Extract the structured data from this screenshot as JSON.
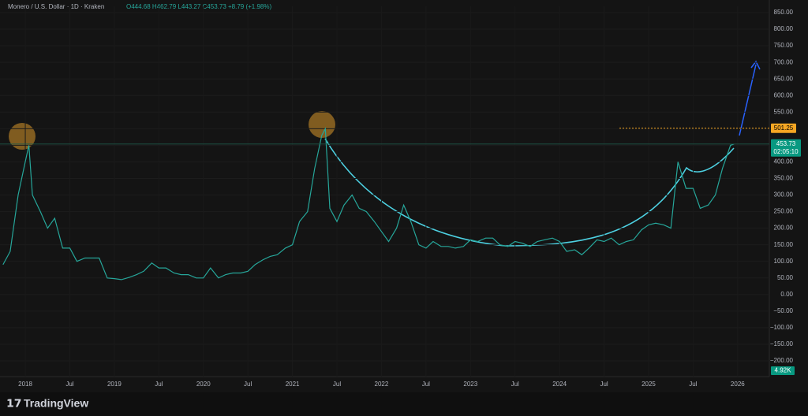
{
  "chart_data": {
    "type": "line",
    "header": "Monero / U.S. Dollar · 1D · Kraken",
    "ohlc_text": "O444.68 H462.79 L443.27 C453.73 +8.79 (+1.98%)",
    "brand": "TradingView",
    "color": "#26a69a",
    "x": [
      2017.75,
      2017.83,
      2017.92,
      2018.0,
      2018.04,
      2018.08,
      2018.17,
      2018.25,
      2018.33,
      2018.42,
      2018.5,
      2018.58,
      2018.67,
      2018.75,
      2018.83,
      2018.92,
      2019.0,
      2019.08,
      2019.17,
      2019.25,
      2019.33,
      2019.42,
      2019.5,
      2019.58,
      2019.67,
      2019.75,
      2019.83,
      2019.92,
      2020.0,
      2020.08,
      2020.17,
      2020.25,
      2020.33,
      2020.42,
      2020.5,
      2020.58,
      2020.67,
      2020.75,
      2020.83,
      2020.92,
      2021.0,
      2021.08,
      2021.17,
      2021.25,
      2021.33,
      2021.37,
      2021.42,
      2021.5,
      2021.58,
      2021.67,
      2021.75,
      2021.83,
      2021.92,
      2022.0,
      2022.08,
      2022.17,
      2022.25,
      2022.33,
      2022.42,
      2022.5,
      2022.58,
      2022.67,
      2022.75,
      2022.83,
      2022.92,
      2023.0,
      2023.08,
      2023.17,
      2023.25,
      2023.33,
      2023.42,
      2023.5,
      2023.58,
      2023.67,
      2023.75,
      2023.83,
      2023.92,
      2024.0,
      2024.08,
      2024.17,
      2024.25,
      2024.33,
      2024.42,
      2024.5,
      2024.58,
      2024.67,
      2024.75,
      2024.83,
      2024.92,
      2025.0,
      2025.08,
      2025.17,
      2025.25,
      2025.33,
      2025.42,
      2025.5,
      2025.58,
      2025.67,
      2025.75,
      2025.83,
      2025.92,
      2025.96
    ],
    "values": [
      90,
      130,
      300,
      400,
      450,
      300,
      250,
      200,
      230,
      140,
      140,
      100,
      110,
      110,
      110,
      50,
      48,
      45,
      52,
      60,
      70,
      95,
      80,
      80,
      65,
      60,
      60,
      50,
      50,
      80,
      50,
      60,
      65,
      65,
      70,
      90,
      105,
      115,
      120,
      140,
      150,
      220,
      250,
      380,
      480,
      500,
      260,
      220,
      270,
      300,
      260,
      250,
      220,
      190,
      160,
      200,
      270,
      220,
      150,
      140,
      160,
      145,
      145,
      140,
      145,
      165,
      160,
      170,
      170,
      150,
      145,
      160,
      155,
      145,
      160,
      165,
      170,
      160,
      130,
      135,
      120,
      140,
      165,
      160,
      170,
      150,
      160,
      165,
      195,
      210,
      215,
      210,
      200,
      400,
      320,
      320,
      260,
      270,
      300,
      380,
      450,
      453.73
    ],
    "xlim": [
      2017.716,
      2026.356
    ],
    "xticks": [
      {
        "value": 2018,
        "label": "2018"
      },
      {
        "value": 2018.5,
        "label": "Jul"
      },
      {
        "value": 2019,
        "label": "2019"
      },
      {
        "value": 2019.5,
        "label": "Jul"
      },
      {
        "value": 2020,
        "label": "2020"
      },
      {
        "value": 2020.5,
        "label": "Jul"
      },
      {
        "value": 2021,
        "label": "2021"
      },
      {
        "value": 2021.5,
        "label": "Jul"
      },
      {
        "value": 2022,
        "label": "2022"
      },
      {
        "value": 2022.5,
        "label": "Jul"
      },
      {
        "value": 2023,
        "label": "2023"
      },
      {
        "value": 2023.5,
        "label": "Jul"
      },
      {
        "value": 2024,
        "label": "2024"
      },
      {
        "value": 2024.5,
        "label": "Jul"
      },
      {
        "value": 2025,
        "label": "2025"
      },
      {
        "value": 2025.5,
        "label": "Jul"
      },
      {
        "value": 2026,
        "label": "2026"
      }
    ],
    "ylim": [
      -247.5,
      869
    ],
    "yticks": [
      {
        "value": 850,
        "label": "850.00"
      },
      {
        "value": 800,
        "label": "800.00"
      },
      {
        "value": 750,
        "label": "750.00"
      },
      {
        "value": 700,
        "label": "700.00"
      },
      {
        "value": 650,
        "label": "650.00"
      },
      {
        "value": 600,
        "label": "600.00"
      },
      {
        "value": 550,
        "label": "550.00"
      },
      {
        "value": 500,
        "label": "500.00"
      },
      {
        "value": 450,
        "label": "450.00"
      },
      {
        "value": 400,
        "label": "400.00"
      },
      {
        "value": 350,
        "label": "350.00"
      },
      {
        "value": 300,
        "label": "300.00"
      },
      {
        "value": 250,
        "label": "250.00"
      },
      {
        "value": 200,
        "label": "200.00"
      },
      {
        "value": 150,
        "label": "150.00"
      },
      {
        "value": 100,
        "label": "100.00"
      },
      {
        "value": 50,
        "label": "50.00"
      },
      {
        "value": 0,
        "label": "0.00"
      },
      {
        "value": -50,
        "label": "−50.00"
      },
      {
        "value": -100,
        "label": "−100.00"
      },
      {
        "value": -150,
        "label": "−150.00"
      },
      {
        "value": -200,
        "label": "−200.00"
      }
    ],
    "level": 501.25,
    "level_color": "#f5a623",
    "last_price": 453.73,
    "countdown": "02:05:10",
    "volume_label": "4.92K"
  }
}
